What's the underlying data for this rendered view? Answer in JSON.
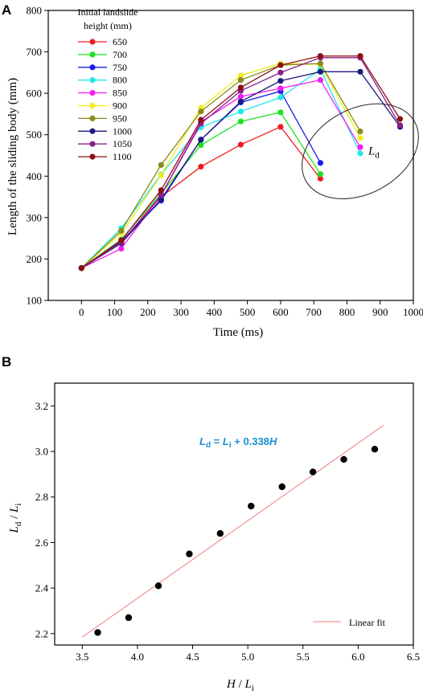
{
  "chart_data": [
    {
      "panel": "A",
      "type": "line",
      "xlabel": "Time (ms)",
      "ylabel": "Length of the sliding body (mm)",
      "xlim": [
        -100,
        1000
      ],
      "ylim": [
        100,
        800
      ],
      "xticks": [
        0,
        100,
        200,
        300,
        400,
        500,
        600,
        700,
        800,
        900,
        1000
      ],
      "yticks": [
        100,
        200,
        300,
        400,
        500,
        600,
        700,
        800
      ],
      "legend_title": "Initial landslide height (mm)",
      "legend_title_lines": [
        "Initial landslide",
        "height (mm)"
      ],
      "legend_position": "top-left",
      "annotation": {
        "base": "L",
        "sub": "d",
        "ellipse_center": [
          840,
          460
        ]
      },
      "series": [
        {
          "name": "650",
          "color": "#ee1c1c",
          "x": [
            0,
            120,
            240,
            360,
            480,
            600,
            720
          ],
          "y": [
            178,
            240,
            350,
            423,
            476,
            519,
            394
          ]
        },
        {
          "name": "700",
          "color": "#1ee21e",
          "x": [
            0,
            120,
            240,
            360,
            480,
            600,
            720
          ],
          "y": [
            178,
            247,
            358,
            475,
            532,
            554,
            405
          ]
        },
        {
          "name": "750",
          "color": "#1c1cee",
          "x": [
            0,
            120,
            240,
            360,
            480,
            600,
            720
          ],
          "y": [
            178,
            243,
            341,
            488,
            578,
            605,
            432
          ]
        },
        {
          "name": "800",
          "color": "#1ee8e8",
          "x": [
            0,
            120,
            240,
            360,
            480,
            600,
            720,
            840
          ],
          "y": [
            178,
            274,
            404,
            518,
            556,
            590,
            658,
            455
          ]
        },
        {
          "name": "850",
          "color": "#f21cf2",
          "x": [
            0,
            120,
            240,
            360,
            480,
            600,
            720,
            840
          ],
          "y": [
            178,
            225,
            354,
            531,
            592,
            612,
            632,
            470
          ]
        },
        {
          "name": "900",
          "color": "#eeee1c",
          "x": [
            0,
            120,
            240,
            360,
            480,
            600,
            720,
            840
          ],
          "y": [
            178,
            262,
            402,
            565,
            643,
            672,
            670,
            492
          ]
        },
        {
          "name": "950",
          "color": "#8a8a1a",
          "x": [
            0,
            120,
            240,
            360,
            480,
            600,
            720,
            840
          ],
          "y": [
            178,
            268,
            427,
            556,
            632,
            668,
            672,
            508
          ]
        },
        {
          "name": "1000",
          "color": "#1a1a80",
          "x": [
            0,
            120,
            240,
            360,
            480,
            600,
            720,
            840,
            960
          ],
          "y": [
            178,
            238,
            344,
            488,
            580,
            630,
            652,
            652,
            519
          ]
        },
        {
          "name": "1050",
          "color": "#8b1f8b",
          "x": [
            0,
            120,
            240,
            360,
            480,
            600,
            720,
            840,
            960
          ],
          "y": [
            178,
            240,
            354,
            527,
            606,
            650,
            686,
            686,
            523
          ]
        },
        {
          "name": "1100",
          "color": "#8b1010",
          "x": [
            0,
            120,
            240,
            360,
            480,
            600,
            720,
            840,
            960
          ],
          "y": [
            178,
            245,
            366,
            536,
            614,
            668,
            690,
            690,
            538
          ]
        }
      ]
    },
    {
      "panel": "B",
      "type": "scatter",
      "xlabel_parts": {
        "base1": "H",
        "sep": " / ",
        "base2": "L",
        "sub2": "i"
      },
      "ylabel_parts": {
        "base1": "L",
        "sub1": "d",
        "sep": " / ",
        "base2": "L",
        "sub2": "i"
      },
      "xlim": [
        3.25,
        6.5
      ],
      "ylim": [
        2.15,
        3.3
      ],
      "xticks": [
        "3.5",
        "4.0",
        "4.5",
        "5.0",
        "5.5",
        "6.0",
        "6.5"
      ],
      "yticks": [
        "2.2",
        "2.4",
        "2.6",
        "2.8",
        "3.0",
        "3.2"
      ],
      "points": {
        "x": [
          3.64,
          3.92,
          4.19,
          4.47,
          4.75,
          5.03,
          5.31,
          5.59,
          5.87,
          6.15
        ],
        "y": [
          2.205,
          2.27,
          2.41,
          2.55,
          2.64,
          2.76,
          2.845,
          2.91,
          2.965,
          3.01
        ]
      },
      "fit_line": {
        "x": [
          3.5,
          6.23
        ],
        "y": [
          2.185,
          3.115
        ],
        "color": "#f08080"
      },
      "equation": {
        "lhs_base": "L",
        "lhs_sub": "d",
        "eq": " = ",
        "rhs_base": "L",
        "rhs_sub": "i",
        "rhs_rest": " + 0.338",
        "rhs_var": "H",
        "color": "#1a8fd0"
      },
      "legend_entry": "Linear fit",
      "legend_position": "bottom-right"
    }
  ]
}
